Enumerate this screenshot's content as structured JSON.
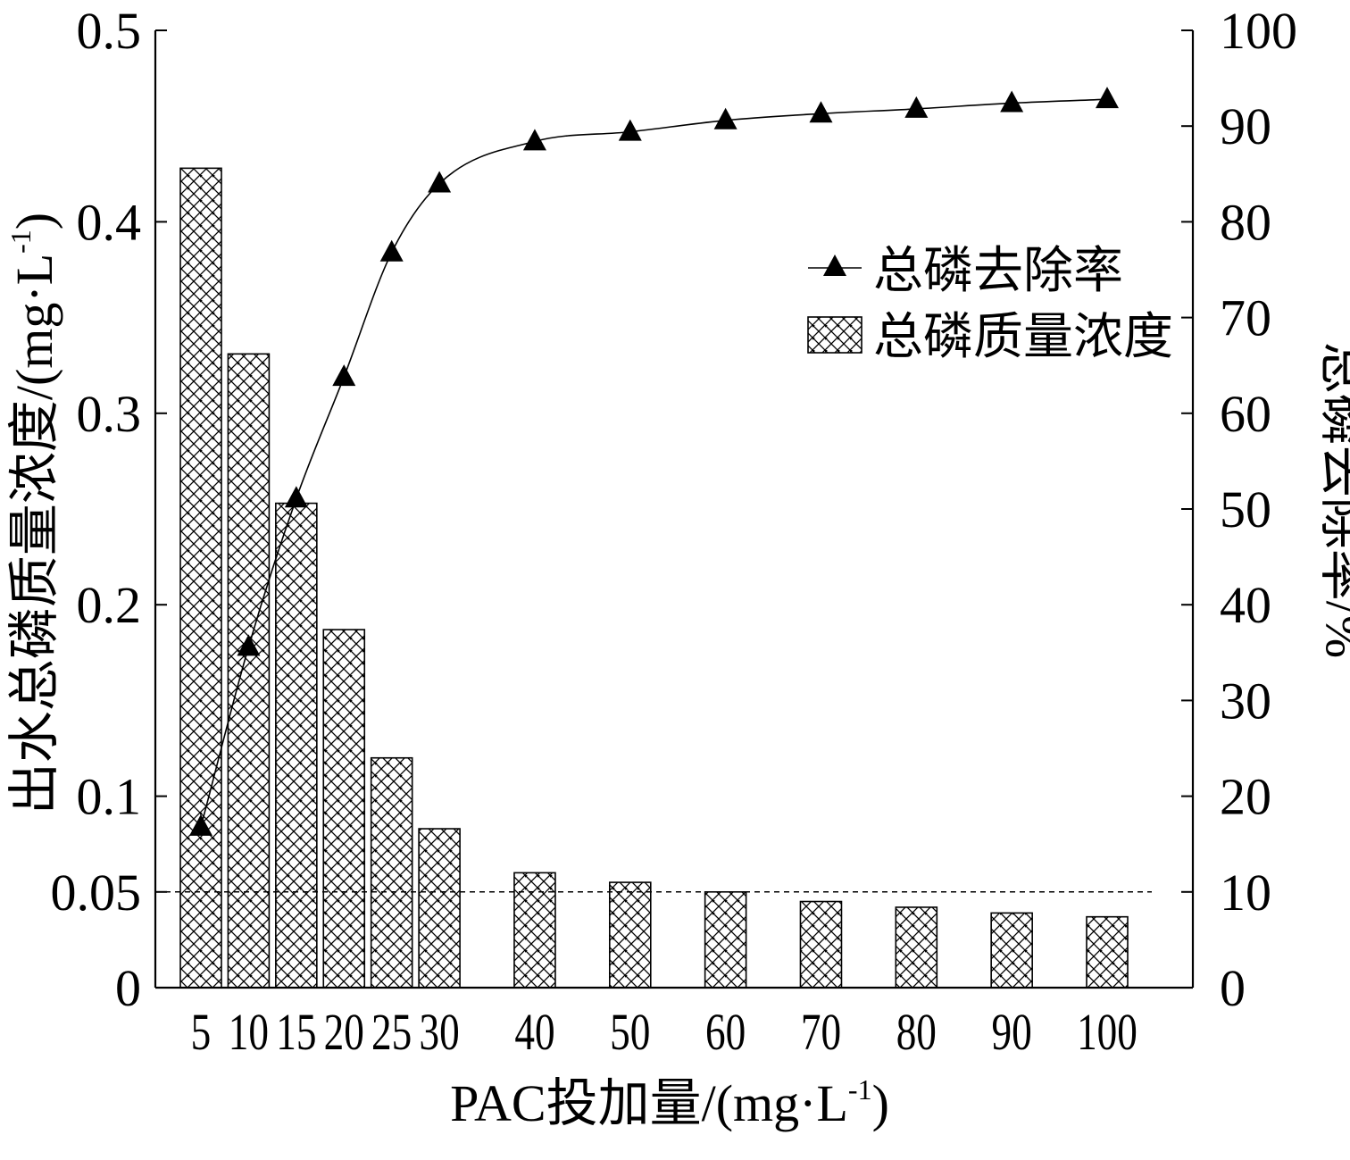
{
  "chart_data": {
    "type": "bar+line",
    "title": "",
    "categories": [
      "5",
      "10",
      "15",
      "20",
      "25",
      "30",
      "40",
      "50",
      "60",
      "70",
      "80",
      "90",
      "100"
    ],
    "x": [
      5,
      10,
      15,
      20,
      25,
      30,
      40,
      50,
      60,
      70,
      80,
      90,
      100
    ],
    "xlabel": "PAC投加量/(mg·L-1)",
    "xlabel_main": "PAC投加量/(mg·L",
    "xlabel_sup": "-1",
    "xlabel_tail": ")",
    "ylabel_left": "出水总磷质量浓度/(mg·L-1)",
    "ylabel_left_main": "出水总磷质量浓度/(mg·L",
    "ylabel_left_sup": "-1",
    "ylabel_left_tail": ")",
    "ylabel_right": "总磷去除率/%",
    "ylim_left": [
      0,
      0.5
    ],
    "ylim_right": [
      0,
      100
    ],
    "yticks_left": [
      "0",
      "0.05",
      "0.1",
      "0.2",
      "0.3",
      "0.4",
      "0.5"
    ],
    "yticks_left_values": [
      0,
      0.05,
      0.1,
      0.2,
      0.3,
      0.4,
      0.5
    ],
    "yticks_right": [
      "0",
      "10",
      "20",
      "30",
      "40",
      "50",
      "60",
      "70",
      "80",
      "90",
      "100"
    ],
    "yticks_right_values": [
      0,
      10,
      20,
      30,
      40,
      50,
      60,
      70,
      80,
      90,
      100
    ],
    "reference_line": {
      "axis": "left",
      "value": 0.05,
      "style": "dashed"
    },
    "series": [
      {
        "name": "总磷质量浓度",
        "type": "bar",
        "axis": "left",
        "pattern": "crosshatch",
        "values": [
          0.428,
          0.331,
          0.253,
          0.187,
          0.12,
          0.083,
          0.06,
          0.055,
          0.05,
          0.045,
          0.042,
          0.039,
          0.037
        ]
      },
      {
        "name": "总磷去除率",
        "type": "line",
        "axis": "right",
        "marker": "triangle",
        "values": [
          16.8,
          35.6,
          51.1,
          63.8,
          76.8,
          84.0,
          88.4,
          89.4,
          90.6,
          91.3,
          91.8,
          92.4,
          92.8
        ]
      }
    ],
    "legend_position": "upper-right"
  }
}
